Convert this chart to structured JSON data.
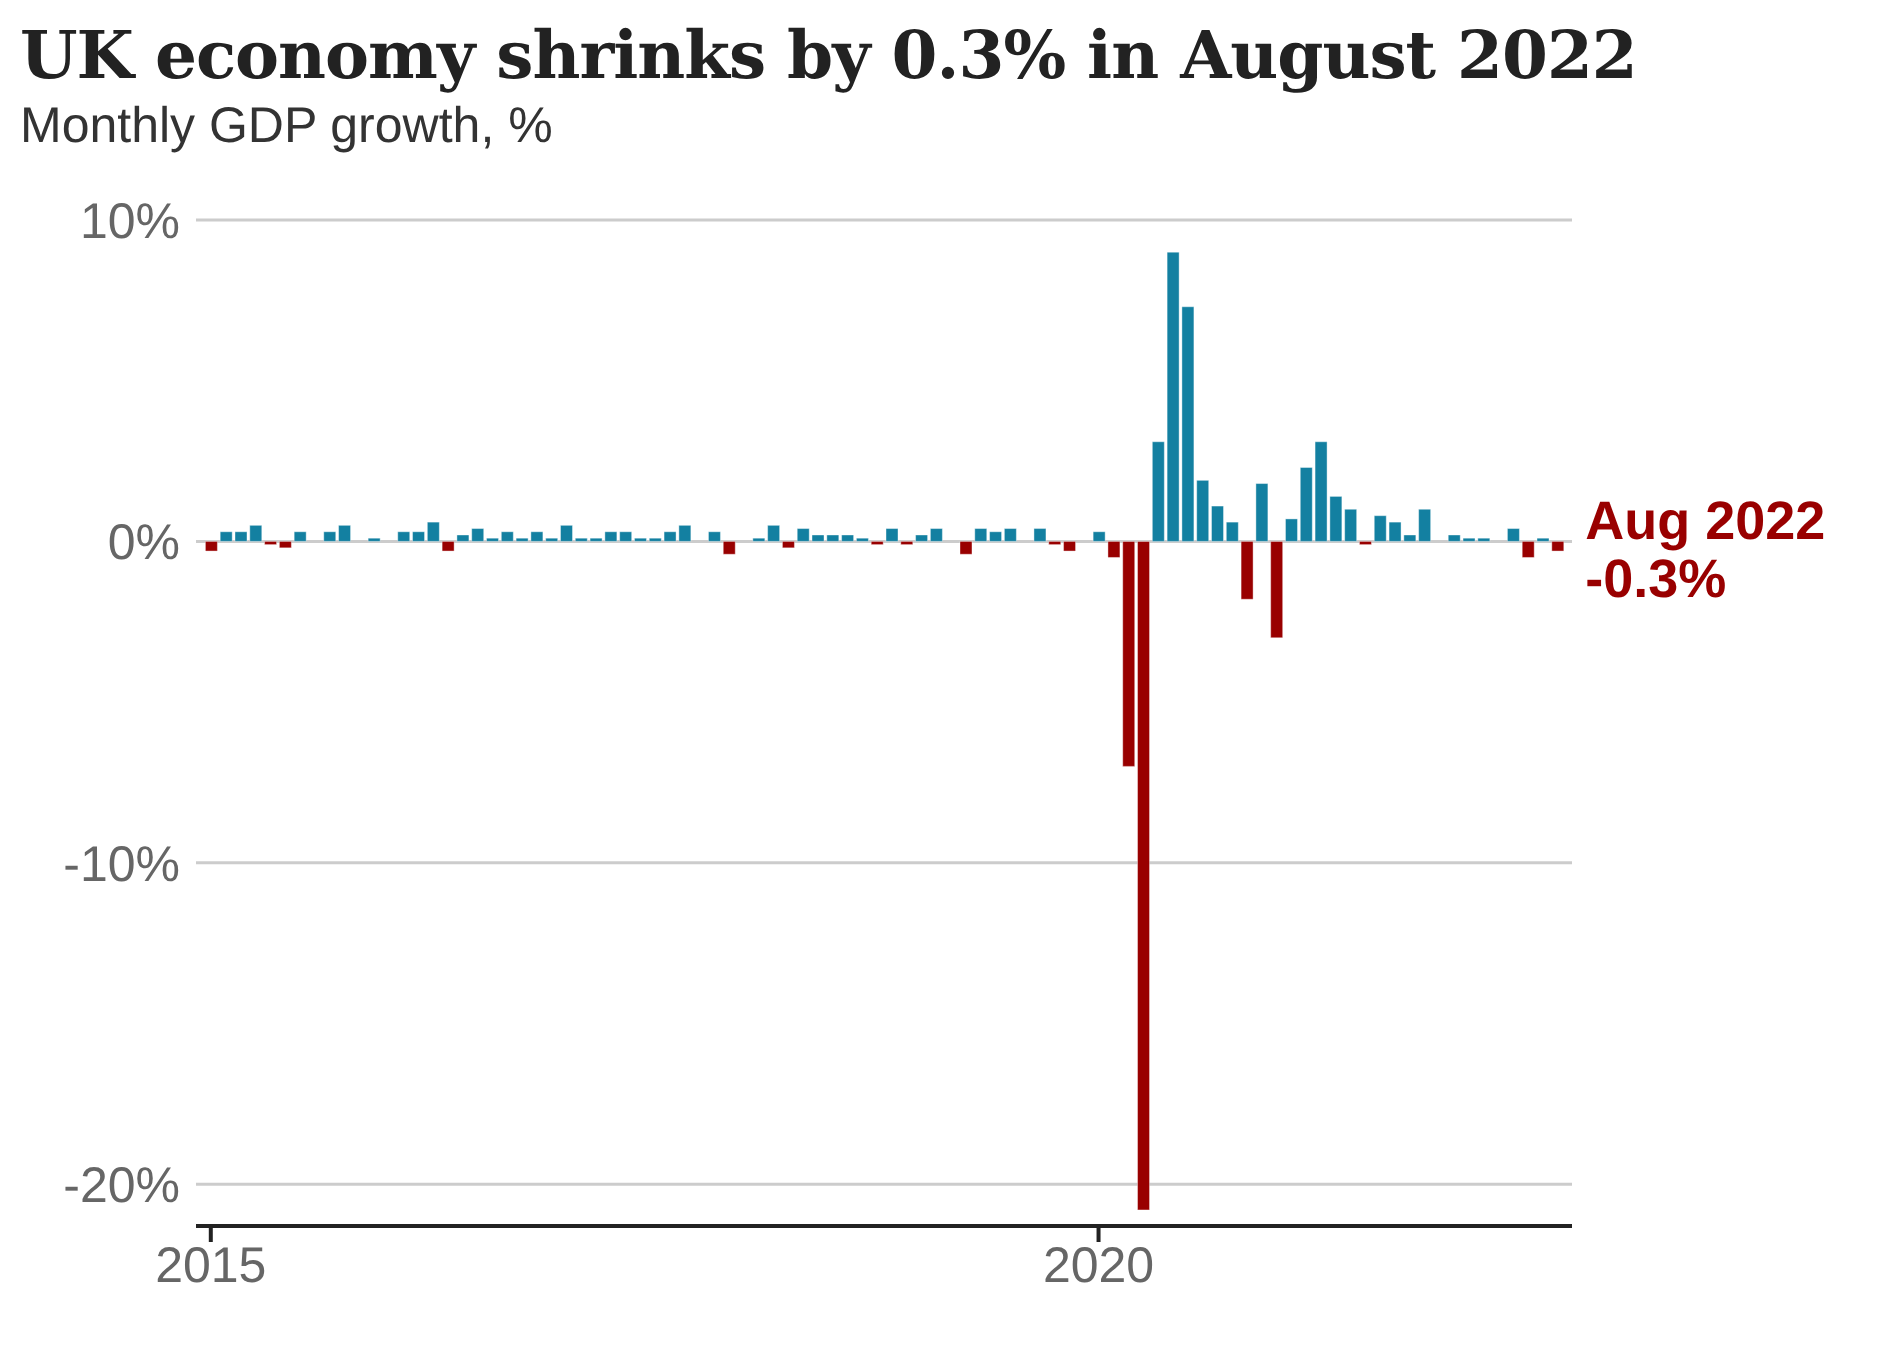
{
  "chart_data": {
    "type": "bar",
    "title": "UK economy shrinks by 0.3% in August 2022",
    "subtitle": "Monthly GDP growth, %",
    "x": [
      "2015-01",
      "2015-02",
      "2015-03",
      "2015-04",
      "2015-05",
      "2015-06",
      "2015-07",
      "2015-08",
      "2015-09",
      "2015-10",
      "2015-11",
      "2015-12",
      "2016-01",
      "2016-02",
      "2016-03",
      "2016-04",
      "2016-05",
      "2016-06",
      "2016-07",
      "2016-08",
      "2016-09",
      "2016-10",
      "2016-11",
      "2016-12",
      "2017-01",
      "2017-02",
      "2017-03",
      "2017-04",
      "2017-05",
      "2017-06",
      "2017-07",
      "2017-08",
      "2017-09",
      "2017-10",
      "2017-11",
      "2017-12",
      "2018-01",
      "2018-02",
      "2018-03",
      "2018-04",
      "2018-05",
      "2018-06",
      "2018-07",
      "2018-08",
      "2018-09",
      "2018-10",
      "2018-11",
      "2018-12",
      "2019-01",
      "2019-02",
      "2019-03",
      "2019-04",
      "2019-05",
      "2019-06",
      "2019-07",
      "2019-08",
      "2019-09",
      "2019-10",
      "2019-11",
      "2019-12",
      "2020-01",
      "2020-02",
      "2020-03",
      "2020-04",
      "2020-05",
      "2020-06",
      "2020-07",
      "2020-08",
      "2020-09",
      "2020-10",
      "2020-11",
      "2020-12",
      "2021-01",
      "2021-02",
      "2021-03",
      "2021-04",
      "2021-05",
      "2021-06",
      "2021-07",
      "2021-08",
      "2021-09",
      "2021-10",
      "2021-11",
      "2021-12",
      "2022-01",
      "2022-02",
      "2022-03",
      "2022-04",
      "2022-05",
      "2022-06",
      "2022-07",
      "2022-08"
    ],
    "values": [
      -0.3,
      0.3,
      0.3,
      0.5,
      -0.1,
      -0.2,
      0.3,
      0,
      0.3,
      0.5,
      0,
      0.1,
      0,
      0.3,
      0.3,
      0.6,
      -0.3,
      0.2,
      0.4,
      0.1,
      0.3,
      0.1,
      0.3,
      0.1,
      0.5,
      0.1,
      0.1,
      0.3,
      0.3,
      0.1,
      0.1,
      0.3,
      0.5,
      0,
      0.3,
      -0.4,
      0,
      0.1,
      0.5,
      -0.2,
      0.4,
      0.2,
      0.2,
      0.2,
      0.1,
      -0.1,
      0.4,
      -0.1,
      0.2,
      0.4,
      0,
      -0.4,
      0.4,
      0.3,
      0.4,
      0,
      0.4,
      -0.1,
      -0.3,
      0,
      0.3,
      -0.5,
      -7,
      -20.8,
      3.1,
      9,
      7.3,
      1.9,
      1.1,
      0.6,
      -1.8,
      1.8,
      -3,
      0.7,
      2.3,
      3.1,
      1.4,
      1,
      -0.1,
      0.8,
      0.6,
      0.2,
      1,
      0,
      0.2,
      0.1,
      0.1,
      0,
      0.4,
      -0.5,
      0.1,
      -0.3
    ],
    "colors": [
      "#990000",
      "#1380a1",
      "#1380a1",
      "#1380a1",
      "#990000",
      "#990000",
      "#1380a1",
      "#1380a1",
      "#1380a1",
      "#1380a1",
      "#1380a1",
      "#1380a1",
      "#1380a1",
      "#1380a1",
      "#1380a1",
      "#1380a1",
      "#990000",
      "#1380a1",
      "#1380a1",
      "#1380a1",
      "#1380a1",
      "#1380a1",
      "#1380a1",
      "#1380a1",
      "#1380a1",
      "#1380a1",
      "#1380a1",
      "#1380a1",
      "#1380a1",
      "#1380a1",
      "#1380a1",
      "#1380a1",
      "#1380a1",
      "#1380a1",
      "#1380a1",
      "#990000",
      "#1380a1",
      "#1380a1",
      "#1380a1",
      "#990000",
      "#1380a1",
      "#1380a1",
      "#1380a1",
      "#1380a1",
      "#1380a1",
      "#990000",
      "#1380a1",
      "#990000",
      "#1380a1",
      "#1380a1",
      "#1380a1",
      "#990000",
      "#1380a1",
      "#1380a1",
      "#1380a1",
      "#1380a1",
      "#1380a1",
      "#990000",
      "#990000",
      "#1380a1",
      "#1380a1",
      "#990000",
      "#990000",
      "#990000",
      "#1380a1",
      "#1380a1",
      "#1380a1",
      "#1380a1",
      "#1380a1",
      "#1380a1",
      "#990000",
      "#1380a1",
      "#990000",
      "#1380a1",
      "#1380a1",
      "#1380a1",
      "#1380a1",
      "#1380a1",
      "#990000",
      "#1380a1",
      "#1380a1",
      "#1380a1",
      "#1380a1",
      "#1380a1",
      "#1380a1",
      "#1380a1",
      "#1380a1",
      "#1380a1",
      "#1380a1",
      "#990000",
      "#1380a1",
      "#990000"
    ],
    "xlim": [
      "2014-12",
      "2022-09"
    ],
    "xticks": [
      {
        "value": "2015-01",
        "label": "2015"
      },
      {
        "value": "2020-01",
        "label": "2020"
      }
    ],
    "ylim": [
      -21.3,
      10
    ],
    "yticks": [
      {
        "value": -20,
        "label": "-20%"
      },
      {
        "value": -10,
        "label": "-10%"
      },
      {
        "value": 0,
        "label": "0%"
      },
      {
        "value": 10,
        "label": "10%"
      }
    ],
    "grid": "y",
    "legend": false,
    "annotations": [
      {
        "text": "Aug 2022\n-0.3%",
        "x": "2022-08",
        "y": -0.3
      }
    ]
  }
}
